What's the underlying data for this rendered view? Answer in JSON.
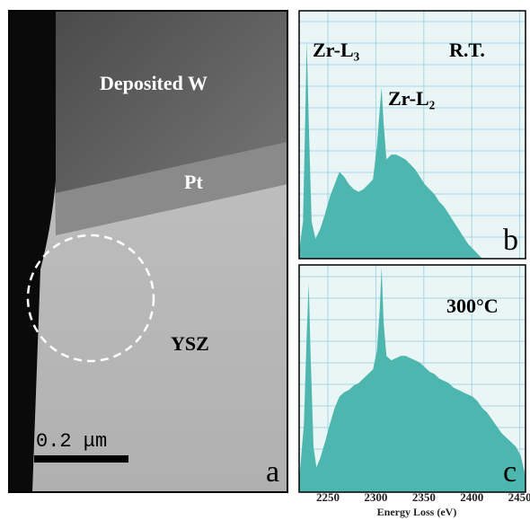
{
  "image_panel": {
    "labels": [
      "Deposited W",
      "Pt",
      "YSZ"
    ],
    "scale_bar": "0.2 μm",
    "panel": "a"
  },
  "chart_data": [
    {
      "type": "area",
      "color": "#4db6ae",
      "grid": true,
      "panel": "b",
      "annotations": [
        "Zr-L₃",
        "Zr-L₂",
        "R.T."
      ],
      "xlim": [
        2220,
        2456
      ],
      "ylim": [
        0,
        100
      ],
      "x": [
        2220,
        2224,
        2226,
        2228,
        2230,
        2233,
        2237,
        2242,
        2247,
        2252,
        2257,
        2262,
        2267,
        2272,
        2277,
        2282,
        2287,
        2292,
        2297,
        2301,
        2304,
        2306,
        2308,
        2311,
        2316,
        2321,
        2326,
        2331,
        2336,
        2341,
        2346,
        2351,
        2356,
        2361,
        2366,
        2371,
        2376,
        2381,
        2386,
        2391,
        2396,
        2401,
        2406,
        2411
      ],
      "values": [
        3,
        15,
        50,
        88,
        55,
        15,
        8,
        12,
        18,
        25,
        30,
        35,
        33,
        30,
        28,
        27,
        28,
        30,
        32,
        45,
        60,
        69,
        55,
        40,
        42,
        42,
        41,
        40,
        38,
        36,
        33,
        30,
        28,
        26,
        23,
        21,
        18,
        15,
        12,
        9,
        6,
        4,
        2,
        0
      ]
    },
    {
      "type": "area",
      "color": "#4db6ae",
      "grid": true,
      "panel": "c",
      "annotations": [
        "300°C"
      ],
      "xlabel": "Energy Loss (eV)",
      "xlim": [
        2220,
        2456
      ],
      "ylim": [
        0,
        100
      ],
      "xticks": [
        2250,
        2300,
        2350,
        2400,
        2450
      ],
      "x": [
        2220,
        2225,
        2228,
        2230,
        2232,
        2235,
        2238,
        2242,
        2247,
        2252,
        2257,
        2262,
        2267,
        2272,
        2277,
        2282,
        2287,
        2292,
        2297,
        2301,
        2304,
        2306,
        2308,
        2311,
        2316,
        2321,
        2326,
        2331,
        2336,
        2341,
        2346,
        2351,
        2356,
        2361,
        2366,
        2371,
        2376,
        2381,
        2386,
        2391,
        2396,
        2401,
        2406,
        2411,
        2416,
        2421,
        2426,
        2431,
        2436,
        2441,
        2446,
        2451,
        2456
      ],
      "values": [
        5,
        30,
        70,
        92,
        60,
        20,
        11,
        15,
        22,
        30,
        37,
        42,
        44,
        45,
        47,
        48,
        50,
        52,
        54,
        62,
        80,
        99,
        75,
        60,
        58,
        59,
        60,
        60,
        59,
        58,
        57,
        55,
        53,
        52,
        50,
        49,
        48,
        46,
        45,
        44,
        43,
        42,
        40,
        37,
        35,
        32,
        29,
        26,
        24,
        22,
        20,
        16,
        7
      ]
    }
  ]
}
